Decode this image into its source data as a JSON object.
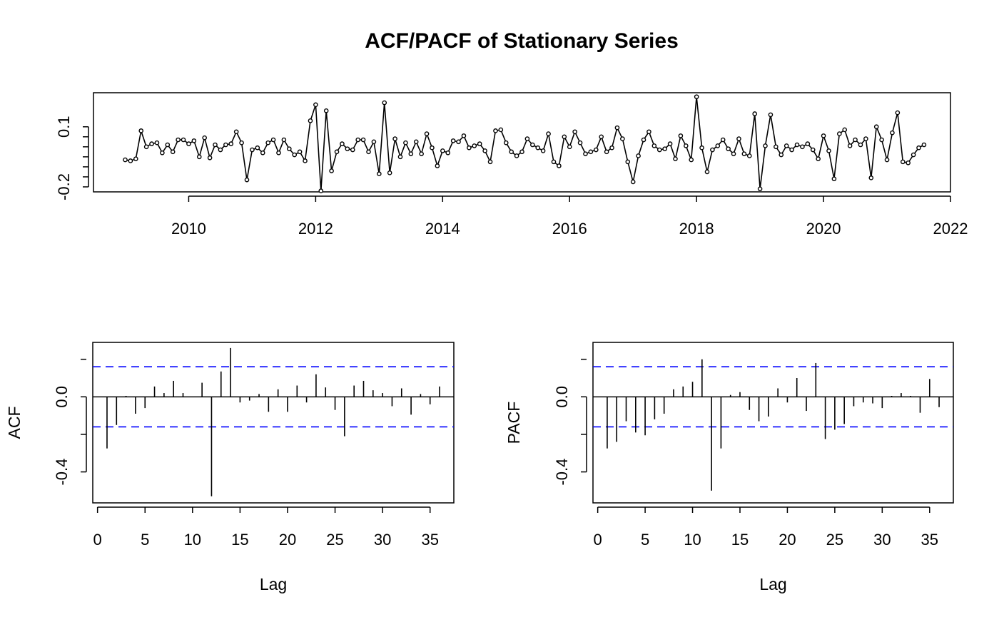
{
  "figure": {
    "title": "ACF/PACF of Stationary Series"
  },
  "chart_data": [
    {
      "type": "line",
      "title": "ACF/PACF of Stationary Series",
      "xlabel": "",
      "ylabel": "",
      "xlim": [
        2008.5,
        2022
      ],
      "ylim": [
        -0.225,
        0.27
      ],
      "x_ticks": [
        2010,
        2012,
        2014,
        2016,
        2018,
        2020,
        2022
      ],
      "y_ticks": [
        -0.2,
        0.1
      ],
      "markers": "open-circle",
      "start": 2009.0,
      "step": 0.0833333,
      "color": "#000000",
      "values": [
        -0.065,
        -0.07,
        -0.06,
        0.08,
        0.0,
        0.015,
        0.02,
        -0.03,
        0.01,
        -0.025,
        0.035,
        0.035,
        0.015,
        0.03,
        -0.05,
        0.045,
        -0.055,
        0.01,
        -0.015,
        0.01,
        0.015,
        0.075,
        0.02,
        -0.165,
        -0.015,
        -0.005,
        -0.03,
        0.02,
        0.035,
        -0.03,
        0.035,
        -0.01,
        -0.04,
        -0.025,
        -0.07,
        0.13,
        0.21,
        -0.22,
        0.18,
        -0.12,
        -0.025,
        0.015,
        -0.01,
        -0.015,
        0.035,
        0.035,
        -0.025,
        0.025,
        -0.135,
        0.22,
        -0.13,
        0.04,
        -0.05,
        0.02,
        -0.035,
        0.025,
        -0.035,
        0.065,
        -0.005,
        -0.095,
        -0.02,
        -0.03,
        0.03,
        0.025,
        0.055,
        -0.005,
        0.005,
        0.015,
        -0.02,
        -0.075,
        0.08,
        0.085,
        0.02,
        -0.025,
        -0.045,
        -0.025,
        0.04,
        0.01,
        -0.005,
        -0.02,
        0.065,
        -0.075,
        -0.095,
        0.05,
        0.0,
        0.075,
        0.02,
        -0.035,
        -0.025,
        -0.015,
        0.05,
        -0.025,
        -0.005,
        0.095,
        0.04,
        -0.075,
        -0.175,
        -0.045,
        0.035,
        0.075,
        0.005,
        -0.015,
        -0.01,
        0.015,
        -0.06,
        0.055,
        0.005,
        -0.065,
        0.25,
        -0.005,
        -0.125,
        -0.015,
        0.005,
        0.035,
        -0.01,
        -0.035,
        0.04,
        -0.035,
        -0.045,
        0.165,
        -0.21,
        0.005,
        0.16,
        0.0,
        -0.04,
        0.005,
        -0.015,
        0.01,
        0.0,
        0.015,
        -0.015,
        -0.06,
        0.055,
        -0.02,
        -0.16,
        0.065,
        0.085,
        0.005,
        0.035,
        0.01,
        0.04,
        -0.155,
        0.1,
        0.035,
        -0.065,
        0.07,
        0.17,
        -0.075,
        -0.08,
        -0.04,
        -0.005,
        0.01
      ]
    },
    {
      "type": "bar",
      "title": "",
      "xlabel": "Lag",
      "ylabel": "ACF",
      "xlim": [
        -0.5,
        37.5
      ],
      "ylim": [
        -0.565,
        0.29
      ],
      "x_ticks": [
        0,
        5,
        10,
        15,
        20,
        25,
        30,
        35
      ],
      "y_ticks": [
        -0.4,
        0.0
      ],
      "confidence_bound": 0.16,
      "bound_color": "#0000ff",
      "lags": [
        1,
        2,
        3,
        4,
        5,
        6,
        7,
        8,
        9,
        10,
        11,
        12,
        13,
        14,
        15,
        16,
        17,
        18,
        19,
        20,
        21,
        22,
        23,
        24,
        25,
        26,
        27,
        28,
        29,
        30,
        31,
        32,
        33,
        34,
        35,
        36
      ],
      "values": [
        -0.275,
        -0.15,
        0.005,
        -0.09,
        -0.06,
        0.055,
        0.02,
        0.085,
        0.02,
        0.0,
        0.075,
        -0.53,
        0.135,
        0.26,
        -0.03,
        -0.02,
        0.015,
        -0.08,
        0.04,
        -0.08,
        0.06,
        -0.03,
        0.12,
        0.05,
        -0.07,
        -0.21,
        0.06,
        0.085,
        0.035,
        0.02,
        -0.05,
        0.045,
        -0.095,
        0.015,
        -0.04,
        0.055
      ]
    },
    {
      "type": "bar",
      "title": "",
      "xlabel": "Lag",
      "ylabel": "PACF",
      "xlim": [
        -0.5,
        37.5
      ],
      "ylim": [
        -0.565,
        0.29
      ],
      "x_ticks": [
        0,
        5,
        10,
        15,
        20,
        25,
        30,
        35
      ],
      "y_ticks": [
        -0.4,
        0.0
      ],
      "confidence_bound": 0.16,
      "bound_color": "#0000ff",
      "lags": [
        1,
        2,
        3,
        4,
        5,
        6,
        7,
        8,
        9,
        10,
        11,
        12,
        13,
        14,
        15,
        16,
        17,
        18,
        19,
        20,
        21,
        22,
        23,
        24,
        25,
        26,
        27,
        28,
        29,
        30,
        31,
        32,
        33,
        34,
        35,
        36
      ],
      "values": [
        -0.275,
        -0.24,
        -0.13,
        -0.19,
        -0.205,
        -0.12,
        -0.09,
        0.04,
        0.055,
        0.08,
        0.2,
        -0.5,
        -0.275,
        0.01,
        0.025,
        -0.07,
        -0.13,
        -0.105,
        0.045,
        -0.03,
        0.1,
        -0.075,
        0.18,
        -0.225,
        -0.175,
        -0.145,
        -0.05,
        -0.03,
        -0.035,
        -0.06,
        0.005,
        0.02,
        0.005,
        -0.085,
        0.095,
        -0.055
      ]
    }
  ]
}
